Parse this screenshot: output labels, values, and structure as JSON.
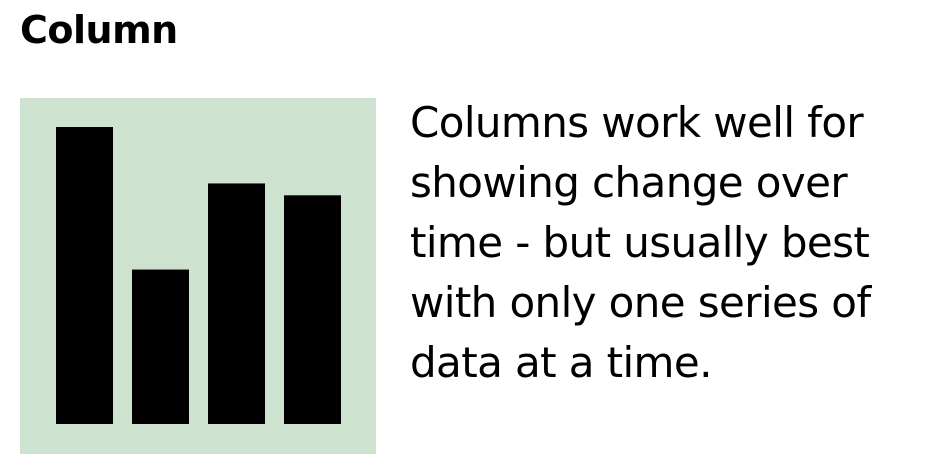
{
  "title": "Column",
  "description": "Columns work well for\nshowing change over\ntime - but usually best\nwith only one series of\ndata at a time.",
  "chart_data": {
    "type": "bar",
    "values": [
      100,
      52,
      81,
      77
    ]
  },
  "colors": {
    "panel_background": "#cde3cf",
    "bar_fill": "#000000"
  },
  "icon": "column-chart-icon"
}
